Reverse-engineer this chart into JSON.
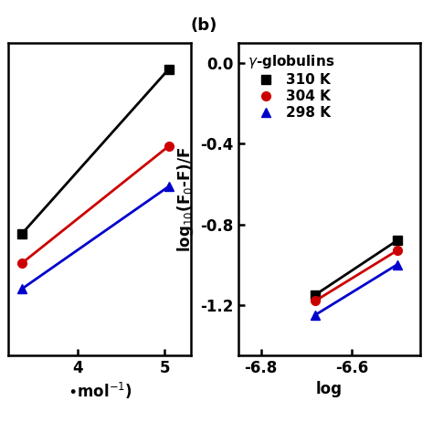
{
  "panel_b": {
    "title": "(b)",
    "ylabel": "log$_{10}$(F$_0$-F)/F",
    "xlabel": "log",
    "xlim": [
      -6.85,
      -6.45
    ],
    "ylim": [
      -1.45,
      0.1
    ],
    "yticks": [
      0.0,
      -0.4,
      -0.8,
      -1.2
    ],
    "xticks": [
      -6.8,
      -6.6
    ],
    "legend_title": "γ-globulins",
    "series": [
      {
        "label": "310 K",
        "color": "#000000",
        "marker": "s",
        "x": [
          -6.68,
          -6.5
        ],
        "y": [
          -1.15,
          -0.88
        ]
      },
      {
        "label": "304 K",
        "color": "#cc0000",
        "marker": "o",
        "x": [
          -6.68,
          -6.5
        ],
        "y": [
          -1.18,
          -0.93
        ]
      },
      {
        "label": "298 K",
        "color": "#0000cc",
        "marker": "^",
        "x": [
          -6.68,
          -6.5
        ],
        "y": [
          -1.25,
          -1.0
        ]
      }
    ]
  },
  "panel_a": {
    "xlabel": "•mol$^{-1}$)",
    "xlim": [
      3.2,
      5.3
    ],
    "ylim": [
      0.3,
      1.15
    ],
    "xticks": [
      4,
      5
    ],
    "series": [
      {
        "label": "310 K",
        "color": "#000000",
        "marker": "s",
        "x": [
          3.35,
          5.05
        ],
        "y": [
          0.63,
          1.08
        ]
      },
      {
        "label": "304 K",
        "color": "#cc0000",
        "marker": "o",
        "x": [
          3.35,
          5.05
        ],
        "y": [
          0.55,
          0.87
        ]
      },
      {
        "label": "298 K",
        "color": "#0000cc",
        "marker": "^",
        "x": [
          3.35,
          5.05
        ],
        "y": [
          0.48,
          0.76
        ]
      }
    ]
  },
  "background_color": "#ffffff",
  "font_size": 12,
  "tick_font_size": 12,
  "linewidth": 2.0,
  "markersize": 7
}
